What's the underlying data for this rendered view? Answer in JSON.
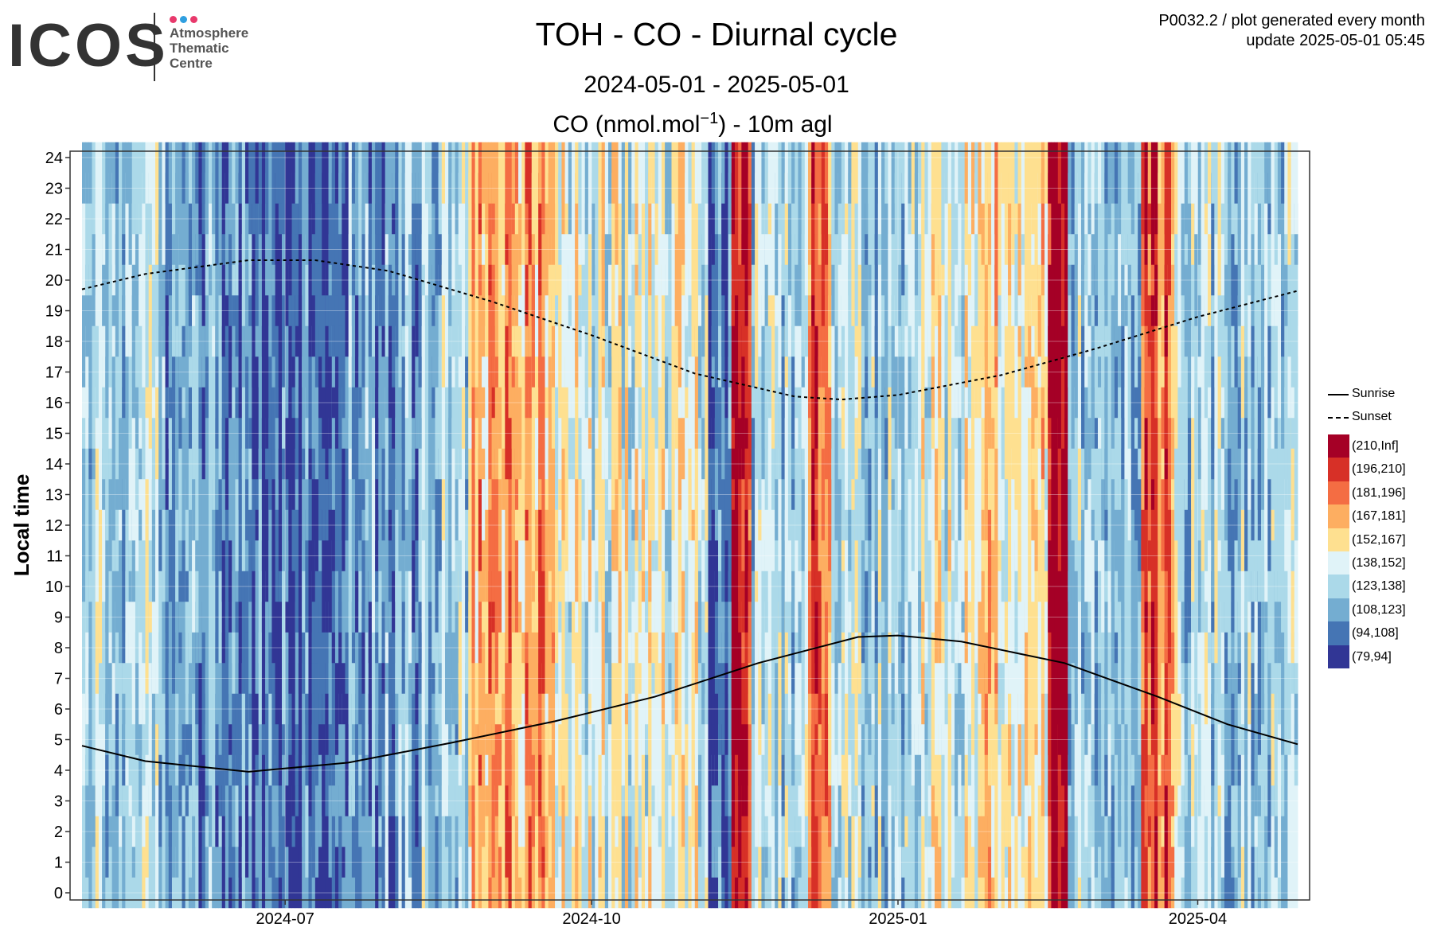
{
  "logo": {
    "word": "ICOS",
    "line1": "Atmosphere",
    "line2": "Thematic",
    "line3": "Centre",
    "dot_colors": [
      "#e8396c",
      "#2f9fe0",
      "#e8396c"
    ]
  },
  "header": {
    "note_line1": "P0032.2 / plot generated every month",
    "note_line2": "update  2025-05-01 05:45"
  },
  "chart_data": {
    "type": "heatmap",
    "title": "TOH - CO - Diurnal cycle",
    "subtitle": "2024-05-01 - 2025-05-01",
    "variable_label_prefix": "CO (nmol.mol",
    "variable_label_exp": "−1",
    "variable_label_suffix": ") - 10m agl",
    "xlabel": "",
    "ylabel": "Local time",
    "x_range": [
      "2024-05-01",
      "2025-05-01"
    ],
    "x_ticks": [
      "2024-07",
      "2024-10",
      "2025-01",
      "2025-04"
    ],
    "y_range": [
      0,
      24
    ],
    "y_ticks": [
      0,
      1,
      2,
      3,
      4,
      5,
      6,
      7,
      8,
      9,
      10,
      11,
      12,
      13,
      14,
      15,
      16,
      17,
      18,
      19,
      20,
      21,
      22,
      23,
      24
    ],
    "grid": true,
    "legend_position": "right",
    "line_series": [
      {
        "name": "Sunrise",
        "style": "solid",
        "points": [
          [
            "2024-05-01",
            4.8
          ],
          [
            "2024-05-20",
            4.3
          ],
          [
            "2024-06-20",
            3.95
          ],
          [
            "2024-07-20",
            4.25
          ],
          [
            "2024-08-20",
            4.9
          ],
          [
            "2024-09-20",
            5.6
          ],
          [
            "2024-10-20",
            6.4
          ],
          [
            "2024-11-20",
            7.5
          ],
          [
            "2024-12-20",
            8.35
          ],
          [
            "2025-01-01",
            8.4
          ],
          [
            "2025-01-20",
            8.2
          ],
          [
            "2025-02-20",
            7.5
          ],
          [
            "2025-03-20",
            6.4
          ],
          [
            "2025-04-10",
            5.5
          ],
          [
            "2025-05-01",
            4.85
          ]
        ]
      },
      {
        "name": "Sunset",
        "style": "dashed",
        "points": [
          [
            "2024-05-01",
            19.7
          ],
          [
            "2024-05-20",
            20.2
          ],
          [
            "2024-06-20",
            20.65
          ],
          [
            "2024-07-10",
            20.65
          ],
          [
            "2024-08-01",
            20.3
          ],
          [
            "2024-09-01",
            19.3
          ],
          [
            "2024-10-01",
            18.2
          ],
          [
            "2024-11-01",
            16.95
          ],
          [
            "2024-12-01",
            16.2
          ],
          [
            "2024-12-15",
            16.1
          ],
          [
            "2025-01-01",
            16.25
          ],
          [
            "2025-02-01",
            16.9
          ],
          [
            "2025-03-01",
            17.75
          ],
          [
            "2025-04-01",
            18.8
          ],
          [
            "2025-05-01",
            19.65
          ]
        ]
      }
    ],
    "bins": [
      {
        "label": "(210,Inf]",
        "color": "#a50026"
      },
      {
        "label": "(196,210]",
        "color": "#d73027"
      },
      {
        "label": "(181,196]",
        "color": "#f46d43"
      },
      {
        "label": "(167,181]",
        "color": "#fdae61"
      },
      {
        "label": "(152,167]",
        "color": "#fee090"
      },
      {
        "label": "(138,152]",
        "color": "#e0f3f8"
      },
      {
        "label": "(123,138]",
        "color": "#abd9e9"
      },
      {
        "label": "(108,123]",
        "color": "#74add1"
      },
      {
        "label": "(94,108]",
        "color": "#4575b4"
      },
      {
        "label": "(79,94]",
        "color": "#313695"
      }
    ],
    "daily_level_profile": [
      {
        "from": "2024-05-01",
        "to": "2024-05-25",
        "bin": 6
      },
      {
        "from": "2024-05-25",
        "to": "2024-06-15",
        "bin": 7
      },
      {
        "from": "2024-06-15",
        "to": "2024-07-20",
        "bin": 8
      },
      {
        "from": "2024-07-20",
        "to": "2024-08-10",
        "bin": 7
      },
      {
        "from": "2024-08-10",
        "to": "2024-08-25",
        "bin": 6
      },
      {
        "from": "2024-08-25",
        "to": "2024-09-20",
        "bin": 3
      },
      {
        "from": "2024-09-20",
        "to": "2024-10-15",
        "bin": 5
      },
      {
        "from": "2024-10-15",
        "to": "2024-11-05",
        "bin": 5
      },
      {
        "from": "2024-11-05",
        "to": "2024-11-12",
        "bin": 8
      },
      {
        "from": "2024-11-12",
        "to": "2024-11-18",
        "bin": 1
      },
      {
        "from": "2024-11-18",
        "to": "2024-12-05",
        "bin": 6
      },
      {
        "from": "2024-12-05",
        "to": "2024-12-12",
        "bin": 2
      },
      {
        "from": "2024-12-12",
        "to": "2025-01-05",
        "bin": 6
      },
      {
        "from": "2025-01-05",
        "to": "2025-01-25",
        "bin": 5
      },
      {
        "from": "2025-01-25",
        "to": "2025-02-15",
        "bin": 4
      },
      {
        "from": "2025-02-15",
        "to": "2025-02-21",
        "bin": 0
      },
      {
        "from": "2025-02-21",
        "to": "2025-03-15",
        "bin": 6
      },
      {
        "from": "2025-03-15",
        "to": "2025-03-25",
        "bin": 2
      },
      {
        "from": "2025-03-25",
        "to": "2025-05-01",
        "bin": 6
      }
    ]
  }
}
